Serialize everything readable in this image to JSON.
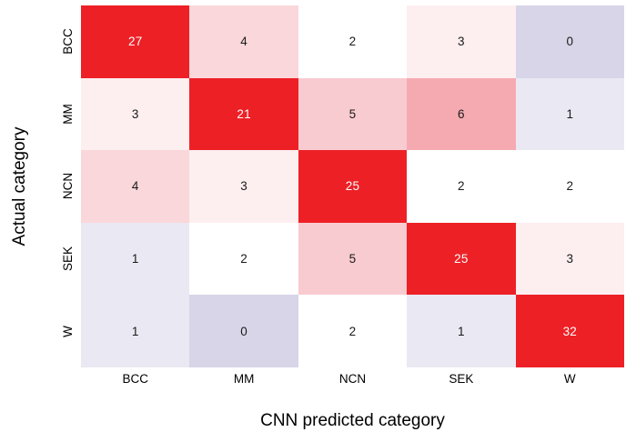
{
  "figure": {
    "background_color": "#ffffff",
    "xlabel": "CNN predicted category",
    "ylabel": "Actual category"
  },
  "chart_data": {
    "type": "heatmap",
    "title": "",
    "xlabel": "CNN predicted category",
    "ylabel": "Actual category",
    "x_categories": [
      "BCC",
      "MM",
      "NCN",
      "SEK",
      "W"
    ],
    "y_categories": [
      "BCC",
      "MM",
      "NCN",
      "SEK",
      "W"
    ],
    "matrix": [
      [
        27,
        4,
        2,
        3,
        0
      ],
      [
        3,
        21,
        5,
        6,
        1
      ],
      [
        4,
        3,
        25,
        2,
        2
      ],
      [
        1,
        2,
        5,
        25,
        3
      ],
      [
        1,
        0,
        2,
        1,
        32
      ]
    ],
    "cell_colors": [
      [
        "#ed2026",
        "#fad7da",
        "#ffffff",
        "#fdeef0",
        "#d8d5e8"
      ],
      [
        "#fdeef0",
        "#ed2026",
        "#f8cbd0",
        "#f5aab1",
        "#eae8f3"
      ],
      [
        "#fad7da",
        "#fdeef0",
        "#ed2026",
        "#ffffff",
        "#ffffff"
      ],
      [
        "#eae8f3",
        "#ffffff",
        "#f8cbd0",
        "#ed2026",
        "#fdeef0"
      ],
      [
        "#eae8f3",
        "#d8d5e8",
        "#ffffff",
        "#eae8f3",
        "#ed2026"
      ]
    ],
    "accent_red": "#ed2026",
    "low_value_lavender": "#d8d5e8",
    "text_color_on_dark": "#ffffff",
    "text_color_on_light": "#1a1a1a",
    "legend": "none",
    "grid": false
  }
}
